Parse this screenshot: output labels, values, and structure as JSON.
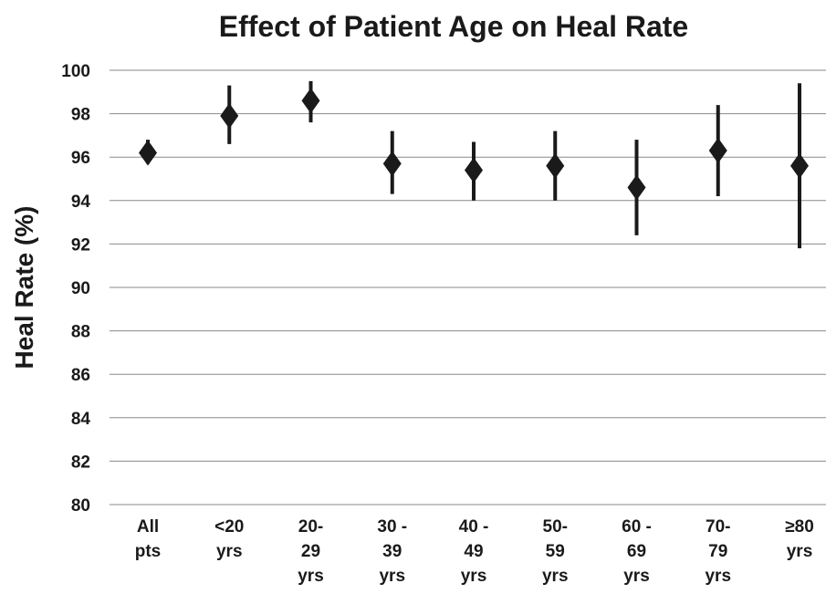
{
  "chart_data": {
    "type": "scatter",
    "title": "Effect of Patient Age on Heal Rate",
    "xlabel": "",
    "ylabel": "Heal Rate (%)",
    "ylim": [
      80,
      100
    ],
    "yticks": [
      "80",
      "82",
      "84",
      "86",
      "88",
      "90",
      "92",
      "94",
      "96",
      "98",
      "100"
    ],
    "grid": true,
    "marker": "diamond",
    "color": "#1a1a1a",
    "categories": [
      [
        "All",
        "pts"
      ],
      [
        "<20",
        "yrs"
      ],
      [
        "20-",
        "29",
        "yrs"
      ],
      [
        "30 -",
        "39",
        "yrs"
      ],
      [
        "40 -",
        "49",
        "yrs"
      ],
      [
        "50-",
        "59",
        "yrs"
      ],
      [
        "60 -",
        "69",
        "yrs"
      ],
      [
        "70-",
        "79",
        "yrs"
      ],
      [
        "≥80",
        "yrs"
      ]
    ],
    "values": [
      96.2,
      97.9,
      98.6,
      95.7,
      95.4,
      95.6,
      94.6,
      96.3,
      95.6
    ],
    "error_low": [
      95.7,
      96.6,
      97.6,
      94.3,
      94.0,
      94.0,
      92.4,
      94.2,
      91.8
    ],
    "error_high": [
      96.8,
      99.3,
      99.5,
      97.2,
      96.7,
      97.2,
      96.8,
      98.4,
      99.4
    ]
  }
}
